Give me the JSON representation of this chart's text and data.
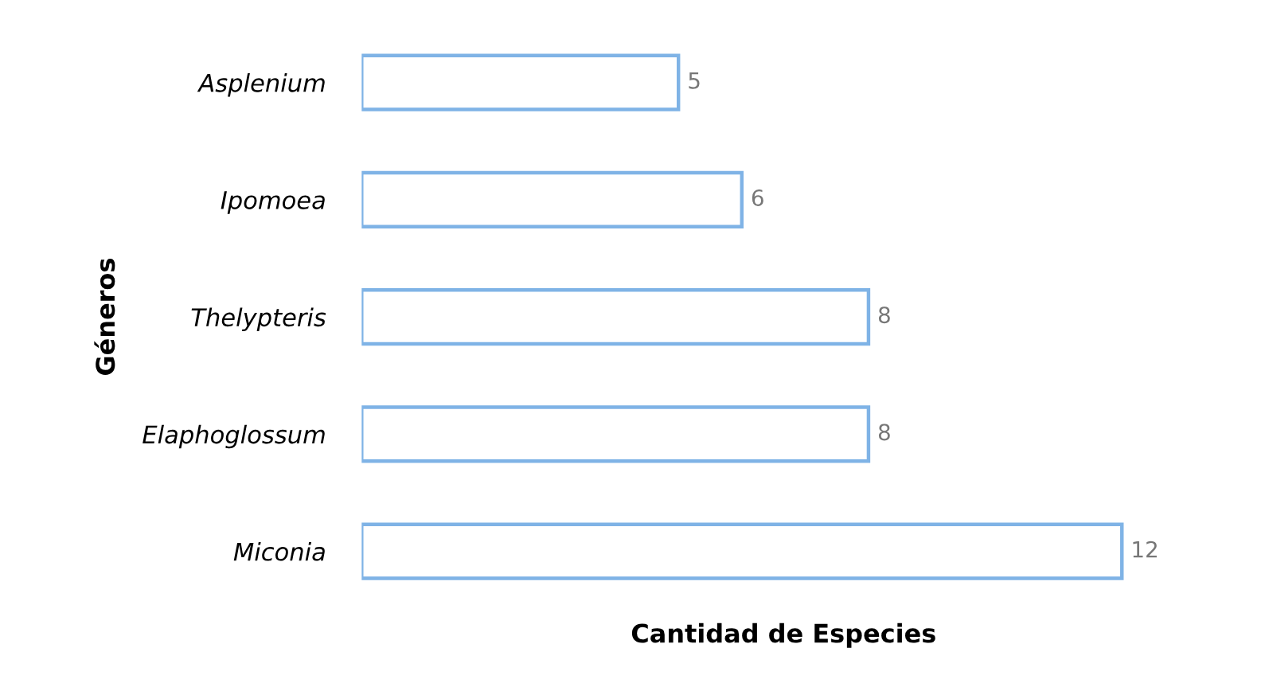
{
  "chart_data": {
    "type": "bar",
    "orientation": "horizontal",
    "xlabel": "Cantidad de Especies",
    "ylabel": "Géneros",
    "categories": [
      "Asplenium",
      "Ipomoea",
      "Thelypteris",
      "Elaphoglossum",
      "Miconia"
    ],
    "values": [
      5,
      6,
      8,
      8,
      12
    ],
    "color": "#7fb3e6",
    "data_labels": true,
    "grid": false,
    "legend": false
  }
}
